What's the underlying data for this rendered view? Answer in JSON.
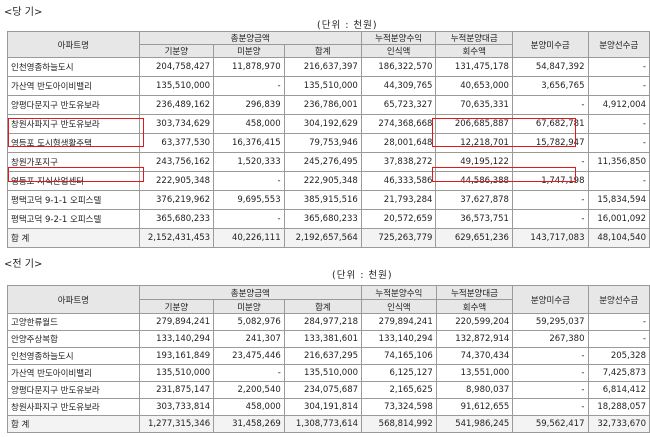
{
  "current": {
    "label": "<당 기>",
    "unit": "(단위 : 천원)",
    "headers": {
      "apt": "아파트명",
      "sales_total": "총분양금액",
      "sold": "기분양",
      "unsold": "미분양",
      "sum": "합계",
      "cum_rev1": "누적분양수익",
      "cum_rev2": "인식액",
      "cum_col1": "누적분양대금",
      "cum_col2": "회수액",
      "receivable": "분양미수금",
      "advance": "분양선수금"
    },
    "rows": [
      [
        "인천영종하늘도시",
        "204,758,427",
        "11,878,970",
        "216,637,397",
        "186,322,570",
        "131,475,178",
        "54,847,392",
        "-"
      ],
      [
        "가산역 반도아이비밸리",
        "135,510,000",
        "-",
        "135,510,000",
        "44,309,765",
        "40,653,000",
        "3,656,765",
        "-"
      ],
      [
        "양평다문지구 반도유보라",
        "236,489,162",
        "296,839",
        "236,786,001",
        "65,723,327",
        "70,635,331",
        "-",
        "4,912,004"
      ],
      [
        "창원사파지구 반도유보라",
        "303,734,629",
        "458,000",
        "304,192,629",
        "274,368,668",
        "206,685,887",
        "67,682,781",
        "-"
      ],
      [
        "영등포 도시형생활주택",
        "63,377,530",
        "16,376,415",
        "79,753,946",
        "28,001,648",
        "12,218,701",
        "15,782,947",
        "-"
      ],
      [
        "창원가포지구",
        "243,756,162",
        "1,520,333",
        "245,276,495",
        "37,838,272",
        "49,195,122",
        "-",
        "11,356,850"
      ],
      [
        "영등포 지식산업센터",
        "222,905,348",
        "-",
        "222,905,348",
        "46,333,586",
        "44,586,388",
        "1,747,198",
        "-"
      ],
      [
        "평택고덕 9-1-1 오피스텔",
        "376,219,962",
        "9,695,553",
        "385,915,516",
        "21,793,284",
        "37,627,878",
        "-",
        "15,834,594"
      ],
      [
        "평택고덕 9-2-1 오피스텔",
        "365,680,233",
        "-",
        "365,680,233",
        "20,572,659",
        "36,573,751",
        "-",
        "16,001,092"
      ],
      [
        "합 계",
        "2,152,431,453",
        "40,226,111",
        "2,192,657,564",
        "725,263,779",
        "629,651,236",
        "143,717,083",
        "48,104,540"
      ]
    ]
  },
  "prior": {
    "label": "<전 기>",
    "unit": "(단위 : 천원)",
    "headers": {
      "apt": "아파트명",
      "sales_total": "총분양금액",
      "sold": "기분양",
      "unsold": "미분양",
      "sum": "합계",
      "cum_rev1": "누적분양수익",
      "cum_rev2": "인식액",
      "cum_col1": "누적분양대금",
      "cum_col2": "회수액",
      "receivable": "분양미수금",
      "advance": "분양선수금"
    },
    "rows": [
      [
        "고양한류월드",
        "279,894,241",
        "5,082,976",
        "284,977,218",
        "279,894,241",
        "220,599,204",
        "59,295,037",
        "-"
      ],
      [
        "안양주상복합",
        "133,140,294",
        "241,307",
        "133,381,601",
        "133,140,294",
        "132,872,914",
        "267,380",
        "-"
      ],
      [
        "인천영종하늘도시",
        "193,161,849",
        "23,475,446",
        "216,637,295",
        "74,165,106",
        "74,370,434",
        "-",
        "205,328"
      ],
      [
        "가산역 반도아이비밸리",
        "135,510,000",
        "-",
        "135,510,000",
        "6,125,127",
        "13,551,000",
        "-",
        "7,425,873"
      ],
      [
        "양평다문지구 반도유보라",
        "231,875,147",
        "2,200,540",
        "234,075,687",
        "2,165,625",
        "8,980,037",
        "-",
        "6,814,412"
      ],
      [
        "창원사파지구 반도유보라",
        "303,733,814",
        "458,000",
        "304,191,814",
        "73,324,598",
        "91,612,655",
        "-",
        "18,288,057"
      ],
      [
        "합 계",
        "1,277,315,346",
        "31,458,269",
        "1,308,773,614",
        "568,814,992",
        "541,986,245",
        "59,562,417",
        "32,733,670"
      ]
    ]
  }
}
